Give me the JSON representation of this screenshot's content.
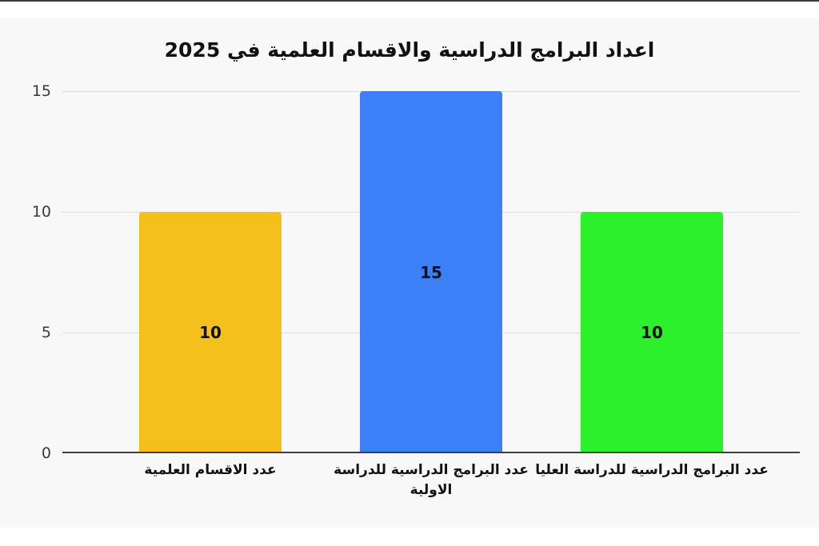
{
  "page": {
    "background": "#ffffff",
    "card_background": "#f8f8f8",
    "baseline_color": "#3f3f3f",
    "gridline_color": "#dcdcdc"
  },
  "chart_data": {
    "type": "bar",
    "title": "اعداد البرامج الدراسية والاقسام العلمية في 2025",
    "categories": [
      "عدد الاقسام العلمية",
      "عدد البرامج الدراسية للدراسة الاولية",
      "عدد البرامج الدراسية للدراسة العليا"
    ],
    "values": [
      10,
      15,
      10
    ],
    "value_labels": [
      "10",
      "15",
      "10"
    ],
    "bar_colors": [
      "#f3c01c",
      "#3b80f7",
      "#2df02d"
    ],
    "yticks": [
      0,
      5,
      10,
      15
    ],
    "ytick_labels": [
      "0",
      "5",
      "10",
      "15"
    ],
    "ylim": [
      0,
      15
    ],
    "xlabel": "",
    "ylabel": "",
    "grid": true,
    "legend": false,
    "value_label_position": "inside-center"
  }
}
